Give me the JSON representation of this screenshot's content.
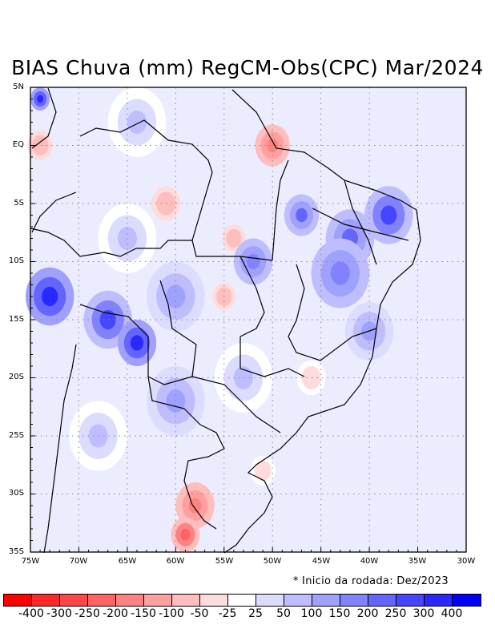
{
  "title": "BIAS Chuva (mm) RegCM-Obs(CPC) Mar/2024",
  "note": "* Inicio da rodada: Dez/2023",
  "lat_labels": [
    "5N",
    "EQ",
    "5S",
    "10S",
    "15S",
    "20S",
    "25S",
    "30S",
    "35S"
  ],
  "lon_labels": [
    "75W",
    "70W",
    "65W",
    "60W",
    "55W",
    "50W",
    "45W",
    "40W",
    "35W",
    "30W"
  ],
  "map": {
    "lon_range": [
      -75,
      -30
    ],
    "lat_range": [
      -35,
      5
    ],
    "grid_interval_deg": 5
  },
  "colorbar": {
    "colors": [
      "#ff0000",
      "#ff2828",
      "#ff4646",
      "#ff6464",
      "#ff8282",
      "#ffa0a0",
      "#ffbebe",
      "#ffdcdc",
      "#ffffff",
      "#dcdcff",
      "#bebeff",
      "#a0a0ff",
      "#8282ff",
      "#6464ff",
      "#4646ff",
      "#2828ff",
      "#0000ff"
    ],
    "labels": [
      "-400",
      "-300",
      "-250",
      "-200",
      "-150",
      "-100",
      "-50",
      "-25",
      "25",
      "50",
      "100",
      "150",
      "200",
      "250",
      "300",
      "400"
    ]
  },
  "field_blobs": [
    {
      "lon": -73,
      "lat": -13,
      "r": 2.5,
      "v": 300
    },
    {
      "lon": -67,
      "lat": -15,
      "r": 2.5,
      "v": 250
    },
    {
      "lon": -64,
      "lat": -17,
      "r": 2.0,
      "v": 300
    },
    {
      "lon": -38,
      "lat": -6,
      "r": 2.5,
      "v": 250
    },
    {
      "lon": -42,
      "lat": -8,
      "r": 2.5,
      "v": 200
    },
    {
      "lon": -47,
      "lat": -6,
      "r": 1.8,
      "v": 200
    },
    {
      "lon": -58,
      "lat": -31,
      "r": 2.0,
      "v": -200
    },
    {
      "lon": -59,
      "lat": -33.5,
      "r": 1.5,
      "v": -250
    },
    {
      "lon": -50,
      "lat": 0,
      "r": 1.8,
      "v": -200
    },
    {
      "lon": -61,
      "lat": -5,
      "r": 1.5,
      "v": -100
    },
    {
      "lon": -54,
      "lat": -8,
      "r": 1.2,
      "v": -100
    },
    {
      "lon": -55,
      "lat": -13,
      "r": 1.2,
      "v": -100
    },
    {
      "lon": -74,
      "lat": 0,
      "r": 1.3,
      "v": -100
    },
    {
      "lon": -74,
      "lat": 4,
      "r": 1.0,
      "v": 300
    },
    {
      "lon": -43,
      "lat": -11,
      "r": 3.0,
      "v": 150
    },
    {
      "lon": -40,
      "lat": -16,
      "r": 2.5,
      "v": 100
    },
    {
      "lon": -60,
      "lat": -13,
      "r": 3.0,
      "v": 100
    },
    {
      "lon": -53,
      "lat": -20,
      "r": 3.0,
      "v": 50
    },
    {
      "lon": -65,
      "lat": -8,
      "r": 3.0,
      "v": 50
    },
    {
      "lon": -68,
      "lat": -25,
      "r": 3.0,
      "v": 50
    },
    {
      "lon": -64,
      "lat": 2,
      "r": 3.0,
      "v": 50
    },
    {
      "lon": -51,
      "lat": -28,
      "r": 1.3,
      "v": -50
    },
    {
      "lon": -46,
      "lat": -20,
      "r": 1.5,
      "v": -50
    },
    {
      "lon": -60,
      "lat": -22,
      "r": 3.0,
      "v": 100
    },
    {
      "lon": -52,
      "lat": -10,
      "r": 2.0,
      "v": 150
    }
  ]
}
